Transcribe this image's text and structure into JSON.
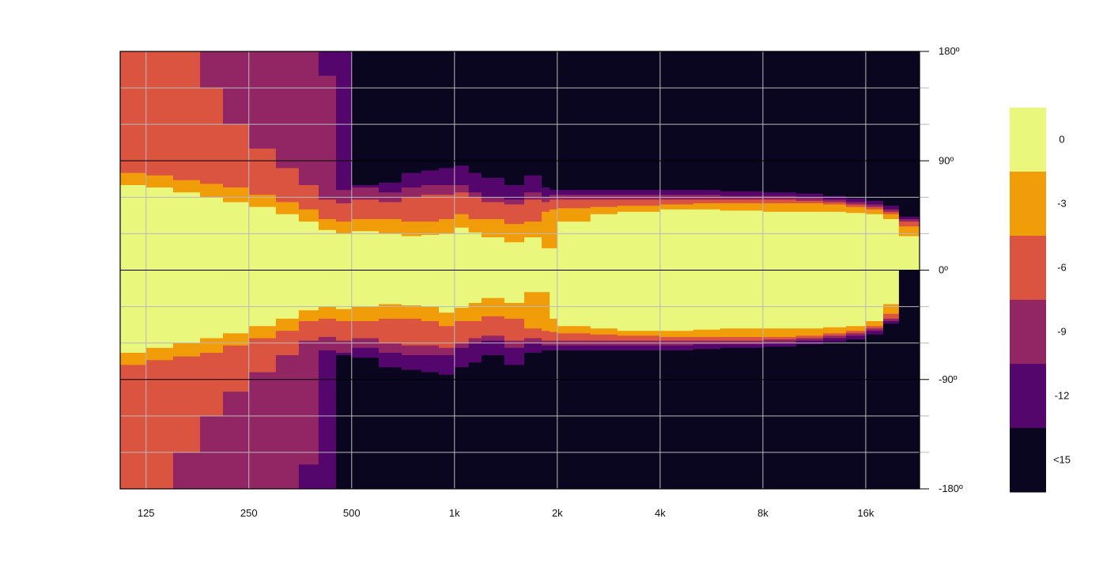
{
  "chart_data": {
    "type": "heatmap",
    "title": "",
    "xlabel": "",
    "ylabel": "",
    "x_scale": "log",
    "xlim": [
      105,
      23000
    ],
    "ylim": [
      -180,
      180
    ],
    "x_ticks": [
      {
        "value": 125,
        "label": "125"
      },
      {
        "value": 250,
        "label": "250"
      },
      {
        "value": 500,
        "label": "500"
      },
      {
        "value": 1000,
        "label": "1k"
      },
      {
        "value": 2000,
        "label": "2k"
      },
      {
        "value": 4000,
        "label": "4k"
      },
      {
        "value": 8000,
        "label": "8k"
      },
      {
        "value": 16000,
        "label": "16k"
      }
    ],
    "y_ticks": [
      {
        "value": 180,
        "label": "180º"
      },
      {
        "value": 90,
        "label": "90º"
      },
      {
        "value": 0,
        "label": "0º"
      },
      {
        "value": -90,
        "label": "-90º"
      },
      {
        "value": -180,
        "label": "-180º"
      }
    ],
    "y_minor_ticks": [
      150,
      120,
      60,
      30,
      -30,
      -60,
      -120,
      -150
    ],
    "grid": true,
    "legend_position": "right",
    "levels": [
      {
        "label": "0",
        "color": "#e9f77c"
      },
      {
        "label": "-3",
        "color": "#f19c09"
      },
      {
        "label": "-6",
        "color": "#da5440"
      },
      {
        "label": "-9",
        "color": "#922665"
      },
      {
        "label": "-12",
        "color": "#55066c"
      },
      {
        "label": "<15",
        "color": "#0b061f"
      }
    ],
    "contour_half_width_deg": {
      "frequency_hz": [
        105,
        125,
        150,
        180,
        210,
        250,
        300,
        350,
        400,
        450,
        500,
        600,
        700,
        800,
        900,
        1000,
        1100,
        1200,
        1400,
        1600,
        1800,
        1900,
        2000,
        2500,
        3000,
        4000,
        5000,
        6000,
        8000,
        10000,
        12000,
        14000,
        16000,
        18000,
        20000,
        23000
      ],
      "level_0": [
        70,
        68,
        64,
        60,
        56,
        52,
        46,
        40,
        33,
        30,
        32,
        30,
        28,
        29,
        30,
        35,
        31,
        27,
        23,
        27,
        18,
        18,
        40,
        46,
        48,
        50,
        50,
        49,
        48,
        48,
        48,
        47,
        46,
        42,
        28,
        0
      ],
      "level_minus_3": [
        80,
        78,
        74,
        71,
        68,
        62,
        56,
        50,
        42,
        40,
        42,
        42,
        40,
        40,
        42,
        46,
        42,
        42,
        38,
        40,
        48,
        50,
        51,
        52,
        53,
        54,
        55,
        55,
        55,
        55,
        54,
        52,
        50,
        46,
        36,
        0
      ],
      "level_minus_6": [
        180,
        180,
        180,
        150,
        120,
        100,
        84,
        70,
        58,
        55,
        58,
        56,
        60,
        62,
        62,
        64,
        60,
        56,
        54,
        58,
        56,
        58,
        58,
        58,
        58,
        58,
        58,
        58,
        58,
        57,
        56,
        54,
        52,
        48,
        40,
        0
      ],
      "level_minus_9": [
        180,
        180,
        180,
        180,
        180,
        180,
        180,
        180,
        160,
        66,
        68,
        64,
        68,
        70,
        70,
        70,
        64,
        60,
        58,
        64,
        60,
        62,
        62,
        62,
        62,
        62,
        62,
        61,
        61,
        60,
        58,
        56,
        54,
        50,
        42,
        0
      ],
      "level_minus_12": [
        180,
        180,
        180,
        180,
        180,
        180,
        180,
        180,
        180,
        180,
        70,
        72,
        80,
        82,
        84,
        86,
        80,
        76,
        70,
        78,
        68,
        66,
        66,
        66,
        66,
        66,
        66,
        65,
        64,
        63,
        61,
        59,
        57,
        53,
        44,
        0
      ]
    }
  }
}
